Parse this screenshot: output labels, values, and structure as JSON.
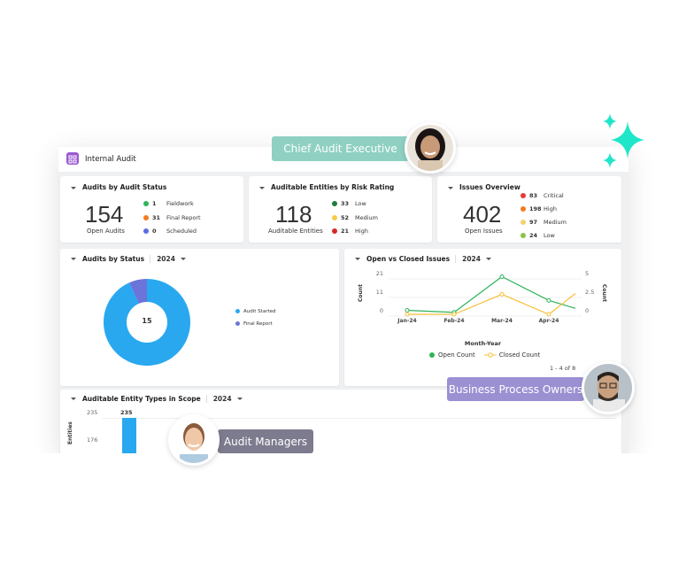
{
  "app": {
    "title": "Internal Audit",
    "icon": "dashboard-grid-icon",
    "accent": "#9b59d0"
  },
  "cards": {
    "audit_status": {
      "title": "Audits by Audit Status",
      "value": "154",
      "label": "Open Audits",
      "items": [
        {
          "count": "1",
          "label": "Fieldwork",
          "color": "#2fb35a"
        },
        {
          "count": "31",
          "label": "Final Report",
          "color": "#f47b20"
        },
        {
          "count": "0",
          "label": "Scheduled",
          "color": "#5b6ee1"
        }
      ]
    },
    "risk_rating": {
      "title": "Auditable Entities by Risk Rating",
      "value": "118",
      "label": "Auditable Entities",
      "items": [
        {
          "count": "33",
          "label": "Low",
          "color": "#1e7d3c"
        },
        {
          "count": "52",
          "label": "Medium",
          "color": "#f7c948"
        },
        {
          "count": "21",
          "label": "High",
          "color": "#d62828"
        }
      ]
    },
    "issues": {
      "title": "Issues Overview",
      "value": "402",
      "label": "Open Issues",
      "items": [
        {
          "count": "83",
          "label": "Critical",
          "color": "#e53935"
        },
        {
          "count": "198",
          "label": "High",
          "color": "#f47b20"
        },
        {
          "count": "97",
          "label": "Medium",
          "color": "#f7d070"
        },
        {
          "count": "24",
          "label": "Low",
          "color": "#8bc34a"
        }
      ]
    }
  },
  "donut": {
    "title": "Audits by Status",
    "year": "2024",
    "center": "15",
    "chart_data": {
      "type": "pie",
      "series": [
        {
          "name": "Audit Started",
          "value": 14,
          "color": "#29a8f0"
        },
        {
          "name": "Final Report",
          "value": 1,
          "color": "#6b74d9"
        }
      ]
    }
  },
  "line": {
    "title": "Open vs Closed Issues",
    "year": "2024",
    "pagination": "1 - 4 of 8",
    "chart_data": {
      "type": "line",
      "categories": [
        "Jan-24",
        "Feb-24",
        "Mar-24",
        "Apr-24",
        ""
      ],
      "xlabel": "Month-Year",
      "ylabel_left": "Count",
      "ylabel_right": "Count",
      "yticks_left": [
        "21",
        "11",
        "0"
      ],
      "yticks_right": [
        "5",
        "2.5",
        "0"
      ],
      "ylim_left": [
        0,
        21
      ],
      "ylim_right": [
        0,
        5
      ],
      "series": [
        {
          "name": "Open Count",
          "axis": "left",
          "color": "#2fb35a",
          "values": [
            2,
            1,
            19,
            7,
            3
          ]
        },
        {
          "name": "Closed Count",
          "axis": "right",
          "color": "#f7c13a",
          "values": [
            0,
            0,
            2.4,
            0,
            2.5
          ]
        }
      ]
    }
  },
  "bar": {
    "title": "Auditable Entity Types in Scope",
    "year": "2024",
    "ylabel": "Entities",
    "chart_data": {
      "type": "bar",
      "yticks": [
        "235",
        "176"
      ],
      "values": [
        235
      ],
      "data_labels": [
        "235"
      ],
      "color": "#29a8f0"
    }
  },
  "personas": {
    "chief": "Chief Audit Executive",
    "bpo": "Business Process Owners",
    "managers": "Audit Managers"
  },
  "colors": {
    "chief_badge": "#8fd0c3",
    "bpo_badge": "#9b90d2",
    "managers_badge": "#7d7b8e",
    "sparkle": "#1ee6c8"
  }
}
